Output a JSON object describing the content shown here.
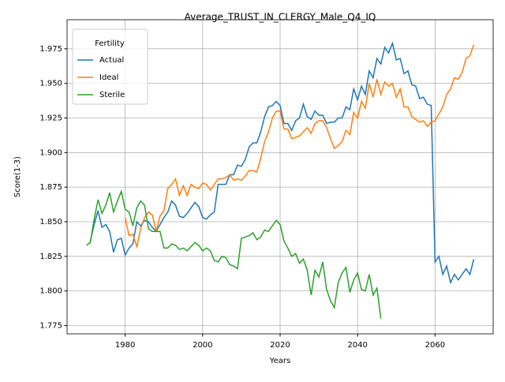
{
  "chart_data": {
    "type": "line",
    "title": "Average_TRUST_IN_CLERGY_Male_Q4_IQ",
    "xlabel": "Years",
    "ylabel": "Score(1-3)",
    "x": [
      1970,
      1971,
      1972,
      1973,
      1974,
      1975,
      1976,
      1977,
      1978,
      1979,
      1980,
      1981,
      1982,
      1983,
      1984,
      1985,
      1986,
      1987,
      1988,
      1989,
      1990,
      1991,
      1992,
      1993,
      1994,
      1995,
      1996,
      1997,
      1998,
      1999,
      2000,
      2001,
      2002,
      2003,
      2004,
      2005,
      2006,
      2007,
      2008,
      2009,
      2010,
      2011,
      2012,
      2013,
      2014,
      2015,
      2016,
      2017,
      2018,
      2019,
      2020,
      2021,
      2022,
      2023,
      2024,
      2025,
      2026,
      2027,
      2028,
      2029,
      2030,
      2031,
      2032,
      2033,
      2034,
      2035,
      2036,
      2037,
      2038,
      2039,
      2040,
      2041,
      2042,
      2043,
      2044,
      2045,
      2046,
      2047,
      2048,
      2049,
      2050,
      2051,
      2052,
      2053,
      2054,
      2055,
      2056,
      2057,
      2058,
      2059,
      2060,
      2061,
      2062,
      2063,
      2064,
      2065,
      2066,
      2067,
      2068,
      2069,
      2070
    ],
    "series": [
      {
        "name": "Actual",
        "color": "#1f77b4",
        "values": [
          null,
          1.836,
          1.848,
          1.858,
          1.846,
          1.848,
          1.843,
          1.828,
          1.837,
          1.838,
          1.826,
          1.831,
          1.834,
          1.85,
          1.847,
          1.851,
          1.85,
          1.846,
          1.843,
          1.848,
          1.853,
          1.857,
          1.865,
          1.862,
          1.854,
          1.853,
          1.856,
          1.86,
          1.864,
          1.861,
          1.853,
          1.852,
          1.855,
          1.857,
          1.877,
          1.877,
          1.877,
          1.884,
          1.884,
          1.891,
          1.89,
          1.895,
          1.904,
          1.907,
          1.907,
          1.915,
          1.926,
          1.933,
          1.934,
          1.937,
          1.934,
          1.921,
          1.921,
          1.916,
          1.923,
          1.925,
          1.935,
          1.926,
          1.924,
          1.93,
          1.927,
          1.927,
          1.921,
          1.922,
          1.922,
          1.925,
          1.925,
          1.933,
          1.931,
          1.946,
          1.938,
          1.948,
          1.942,
          1.959,
          1.954,
          1.968,
          1.964,
          1.976,
          1.972,
          1.979,
          1.967,
          1.968,
          1.957,
          1.959,
          1.949,
          1.948,
          1.939,
          1.94,
          1.935,
          1.934,
          1.821,
          1.825,
          1.812,
          1.818,
          1.806,
          1.812,
          1.808,
          1.812,
          1.816,
          1.812,
          1.823
        ]
      },
      {
        "name": "Ideal",
        "color": "#ff7f0e",
        "values": [
          null,
          null,
          null,
          null,
          null,
          null,
          null,
          null,
          null,
          null,
          1.853,
          1.84,
          1.841,
          1.832,
          1.845,
          1.853,
          1.857,
          1.855,
          1.843,
          1.854,
          1.858,
          1.874,
          1.877,
          1.881,
          1.869,
          1.876,
          1.869,
          1.877,
          1.875,
          1.874,
          1.878,
          1.877,
          1.873,
          1.877,
          1.881,
          1.881,
          1.882,
          1.884,
          1.88,
          1.881,
          1.88,
          1.883,
          1.887,
          1.887,
          1.886,
          1.896,
          1.908,
          1.915,
          1.925,
          1.93,
          1.93,
          1.917,
          1.917,
          1.91,
          1.911,
          1.912,
          1.915,
          1.918,
          1.914,
          1.921,
          1.923,
          1.923,
          1.918,
          1.91,
          1.903,
          1.905,
          1.908,
          1.916,
          1.913,
          1.929,
          1.925,
          1.937,
          1.932,
          1.95,
          1.94,
          1.953,
          1.942,
          1.951,
          1.948,
          1.95,
          1.94,
          1.946,
          1.933,
          1.933,
          1.926,
          1.924,
          1.922,
          1.923,
          1.919,
          1.922,
          1.923,
          1.928,
          1.933,
          1.942,
          1.946,
          1.954,
          1.953,
          1.958,
          1.968,
          1.97,
          1.978
        ]
      },
      {
        "name": "Sterile",
        "color": "#2ca02c",
        "values": [
          1.833,
          1.835,
          1.852,
          1.866,
          1.856,
          1.862,
          1.871,
          1.857,
          1.865,
          1.872,
          1.859,
          1.857,
          1.847,
          1.86,
          1.865,
          1.862,
          1.845,
          1.843,
          1.843,
          1.843,
          1.831,
          1.831,
          1.834,
          1.833,
          1.83,
          1.831,
          1.829,
          1.832,
          1.835,
          1.833,
          1.829,
          1.831,
          1.829,
          1.822,
          1.821,
          1.825,
          1.824,
          1.819,
          1.818,
          1.816,
          1.838,
          1.839,
          1.84,
          1.842,
          1.837,
          1.839,
          1.844,
          1.843,
          1.847,
          1.851,
          1.848,
          1.836,
          1.831,
          1.825,
          1.827,
          1.82,
          1.823,
          1.815,
          1.797,
          1.815,
          1.81,
          1.821,
          1.801,
          1.793,
          1.788,
          1.806,
          1.813,
          1.817,
          1.799,
          1.808,
          1.813,
          1.801,
          1.8,
          1.812,
          1.797,
          1.802,
          1.78,
          null,
          null,
          null,
          null,
          null,
          null,
          null,
          null,
          null,
          null,
          null,
          null,
          null,
          null,
          null,
          null,
          null,
          null,
          null,
          null,
          null,
          null,
          null,
          null
        ]
      }
    ],
    "xlim": [
      1965,
      2075
    ],
    "ylim": [
      1.769,
      1.996
    ],
    "xticks": [
      1980,
      2000,
      2020,
      2040,
      2060
    ],
    "yticks": [
      1.775,
      {
        "value": 1.8,
        "label": "1.800"
      },
      1.825,
      {
        "value": 1.85,
        "label": "1.850"
      },
      1.875,
      {
        "value": 1.9,
        "label": "1.900"
      },
      1.925,
      {
        "value": 1.95,
        "label": "1.950"
      },
      1.975
    ],
    "grid": true,
    "legend_title": "Fertility",
    "legend": "upper left"
  }
}
